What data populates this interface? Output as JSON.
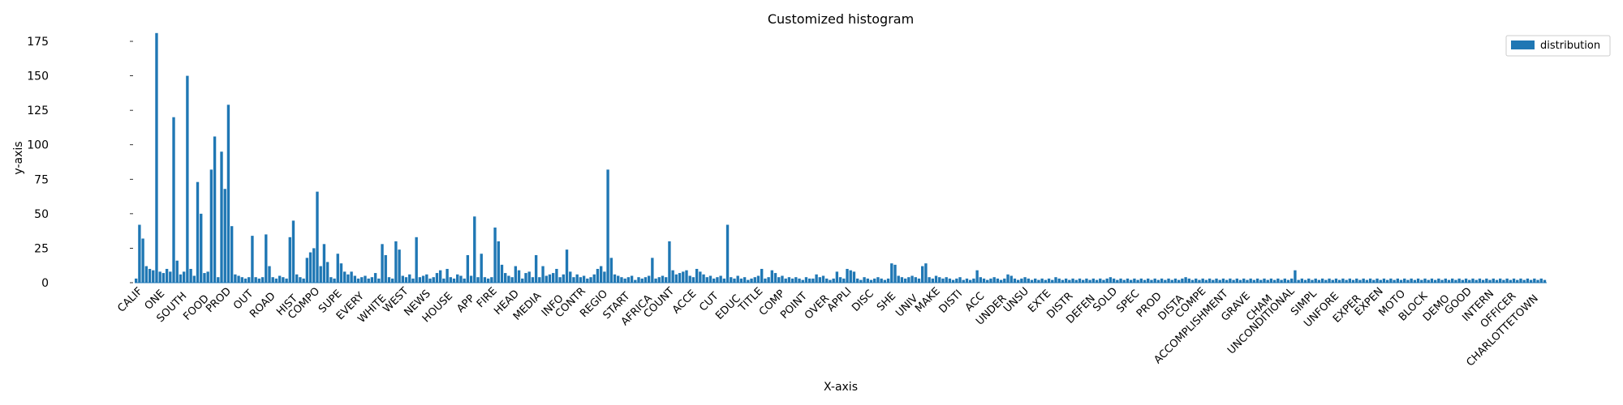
{
  "chart_data": {
    "type": "bar",
    "title": "Customized histogram",
    "xlabel": "X-axis",
    "ylabel": "y-axis",
    "ylim": [
      0,
      185
    ],
    "yticks": [
      0,
      25,
      50,
      75,
      100,
      125,
      150,
      175
    ],
    "grid": false,
    "legend_placement": "top-right",
    "color": "#1f77b4",
    "series": [
      {
        "name": "distribution",
        "values": [
          3,
          42,
          32,
          12,
          10,
          9,
          181,
          8,
          7,
          10,
          8,
          120,
          16,
          6,
          8,
          150,
          10,
          5,
          73,
          50,
          7,
          8,
          82,
          106,
          4,
          95,
          68,
          129,
          41,
          6,
          5,
          4,
          3,
          4,
          34,
          4,
          3,
          4,
          35,
          12,
          4,
          3,
          5,
          4,
          3,
          33,
          45,
          6,
          4,
          3,
          18,
          22,
          25,
          66,
          12,
          28,
          15,
          4,
          3,
          21,
          14,
          8,
          6,
          8,
          5,
          3,
          4,
          5,
          3,
          4,
          7,
          3,
          28,
          20,
          4,
          3,
          30,
          24,
          5,
          4,
          6,
          3,
          33,
          4,
          5,
          6,
          3,
          4,
          7,
          9,
          3,
          10,
          4,
          3,
          6,
          5,
          3,
          20,
          5,
          48,
          4,
          21,
          4,
          3,
          4,
          40,
          30,
          13,
          7,
          5,
          4,
          12,
          9,
          3,
          7,
          8,
          4,
          20,
          4,
          12,
          5,
          6,
          7,
          10,
          4,
          6,
          24,
          8,
          4,
          6,
          4,
          5,
          3,
          4,
          6,
          10,
          12,
          8,
          82,
          18,
          6,
          5,
          4,
          3,
          4,
          5,
          2,
          4,
          3,
          4,
          5,
          18,
          3,
          4,
          5,
          4,
          30,
          9,
          6,
          7,
          8,
          9,
          5,
          4,
          10,
          8,
          6,
          4,
          5,
          3,
          4,
          5,
          3,
          42,
          4,
          3,
          5,
          3,
          4,
          2,
          3,
          4,
          5,
          10,
          3,
          4,
          9,
          7,
          4,
          5,
          3,
          4,
          3,
          4,
          3,
          2,
          4,
          3,
          3,
          6,
          4,
          5,
          3,
          2,
          3,
          8,
          4,
          3,
          10,
          9,
          8,
          3,
          2,
          4,
          3,
          2,
          3,
          4,
          3,
          2,
          3,
          14,
          13,
          5,
          4,
          3,
          4,
          5,
          4,
          3,
          12,
          14,
          4,
          3,
          5,
          4,
          3,
          4,
          3,
          2,
          3,
          4,
          2,
          3,
          2,
          3,
          9,
          4,
          3,
          2,
          3,
          4,
          3,
          2,
          3,
          6,
          5,
          3,
          2,
          3,
          4,
          3,
          2,
          3,
          2,
          3,
          2,
          3,
          2,
          4,
          3,
          2,
          3,
          2,
          3,
          2,
          3,
          2,
          3,
          2,
          3,
          2,
          3,
          2,
          3,
          4,
          3,
          2,
          3,
          2,
          3,
          2,
          3,
          2,
          3,
          2,
          3,
          2,
          3,
          2,
          3,
          2,
          3,
          2,
          3,
          2,
          3,
          4,
          3,
          2,
          3,
          2,
          3,
          2,
          3,
          2,
          3,
          2,
          3,
          2,
          3,
          2,
          3,
          2,
          3,
          2,
          3,
          2,
          3,
          2,
          3,
          2,
          3,
          2,
          3,
          2,
          3,
          2,
          3,
          9,
          2,
          3,
          2,
          3,
          2,
          3,
          2,
          3,
          2,
          3,
          2,
          3,
          2,
          3,
          2,
          3,
          2,
          3,
          2,
          3,
          2,
          3,
          2,
          3,
          2,
          3,
          2,
          3,
          2,
          3,
          2,
          3,
          2,
          3,
          2,
          3,
          2,
          3,
          2,
          3,
          2,
          3,
          2,
          3,
          2,
          3,
          2,
          3,
          2,
          3,
          2,
          3,
          2,
          3,
          2,
          3,
          2,
          3,
          2,
          3,
          2,
          3,
          2,
          3,
          2,
          3,
          2,
          3,
          2,
          3,
          2,
          3,
          2
        ]
      }
    ],
    "visible_xtick_labels": [
      "CALIF",
      "ONE",
      "SOUTH",
      "FOOD",
      "PROD",
      "OUT",
      "ROAD",
      "HIST",
      "COMPO",
      "SUPE",
      "EVERY",
      "WHITE",
      "WEST",
      "NEWS",
      "HOUSE",
      "APP",
      "FIRE",
      "HEAD",
      "MEDIA",
      "INFO",
      "CONTR",
      "REGIO",
      "START",
      "AFRICA",
      "COUNT",
      "ACCE",
      "CUT",
      "EDUC",
      "TITLE",
      "COMP",
      "POINT",
      "OVER",
      "APPLI",
      "DISC",
      "SHE",
      "UNIV",
      "MAKE",
      "DISTI",
      "ACC",
      "UNDER",
      "UNSU",
      "EXTE",
      "DISTR",
      "DEFEN",
      "SOLD",
      "SPEC",
      "PROD",
      "DISTA",
      "COMPE",
      "ACCOMPLISHMENT",
      "GRAVE",
      "CHAM",
      "UNCONDITIONAL",
      "SIMPL",
      "UNFORE",
      "EXPER",
      "EXPEN",
      "MOTO",
      "BLOCK",
      "DEMO",
      "GOOD",
      "INTERN",
      "OFFICER",
      "CHARLOTTETOWN"
    ]
  }
}
